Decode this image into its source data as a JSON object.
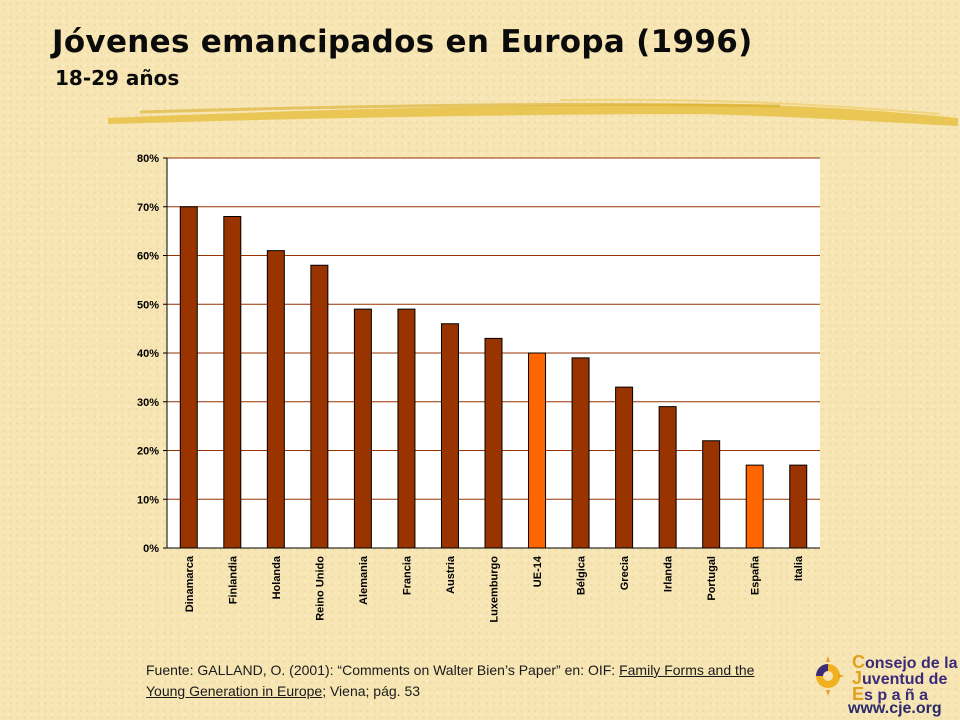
{
  "header": {
    "title": "Jóvenes emancipados en Europa (1996)",
    "subtitle": "18-29 años"
  },
  "chart_data": {
    "type": "bar",
    "title": "",
    "xlabel": "",
    "ylabel": "",
    "ylim": [
      0,
      80
    ],
    "yticks": [
      "0%",
      "10%",
      "20%",
      "30%",
      "40%",
      "50%",
      "60%",
      "70%",
      "80%"
    ],
    "categories": [
      "Dinamarca",
      "Finlandia",
      "Holanda",
      "Reino Unido",
      "Alemania",
      "Francia",
      "Austria",
      "Luxemburgo",
      "UE-14",
      "Bélgica",
      "Grecia",
      "Irlanda",
      "Portugal",
      "España",
      "Italia"
    ],
    "values": [
      70,
      68,
      61,
      58,
      49,
      49,
      46,
      43,
      40,
      39,
      33,
      29,
      22,
      17,
      17
    ],
    "highlight": [
      "UE-14",
      "España"
    ],
    "colors": {
      "bar": "#993300",
      "highlight": "#ff6600",
      "plot_background": "#ffffff",
      "grid": "#993300"
    },
    "grid": true
  },
  "source": {
    "prefix": "Fuente: GALLAND, O. (2001): “Comments on Walter Bien’s Paper” en: OIF: ",
    "book": "Family Forms and the Young Generation in Europe",
    "suffix": "; Viena; pág. 53"
  },
  "logo": {
    "lines": [
      {
        "cap": "C",
        "rest": "onsejo de la"
      },
      {
        "cap": "J",
        "rest": "uventud de"
      },
      {
        "cap": "E",
        "rest": "s p a ñ a"
      }
    ],
    "url": "www.cje.org"
  }
}
